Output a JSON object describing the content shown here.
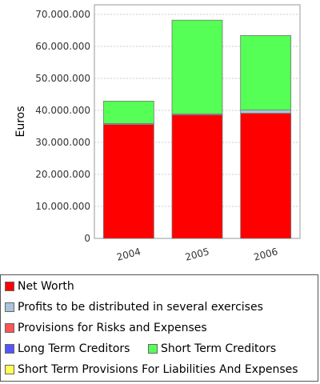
{
  "chart_data": {
    "type": "bar",
    "stacked": true,
    "ylabel": "Euros",
    "xlabel": "",
    "ylim": [
      0,
      73000000
    ],
    "yticks": [
      0,
      10000000,
      20000000,
      30000000,
      40000000,
      50000000,
      60000000,
      70000000
    ],
    "ytick_labels": [
      "0",
      "10.000.000",
      "20.000.000",
      "30.000.000",
      "40.000.000",
      "50.000.000",
      "60.000.000",
      "70.000.000"
    ],
    "categories": [
      "2004",
      "2005",
      "2006"
    ],
    "grid": true,
    "legend_position": "bottom",
    "series": [
      {
        "name": "Net Worth",
        "color": "#ff0000",
        "values": [
          35600000,
          38600000,
          39100000
        ]
      },
      {
        "name": "Profits to be distributed in several exercises",
        "color": "#a9c4dc",
        "values": [
          300000,
          300000,
          1000000
        ]
      },
      {
        "name": "Provisions for Risks and Expenses",
        "color": "#ff5555",
        "values": [
          0,
          0,
          0
        ]
      },
      {
        "name": "Long Term Creditors",
        "color": "#5555ff",
        "values": [
          0,
          0,
          0
        ]
      },
      {
        "name": "Short Term Creditors",
        "color": "#55ff55",
        "values": [
          7000000,
          29300000,
          23300000
        ]
      },
      {
        "name": "Short Term Provisions For Liabilities And Expenses",
        "color": "#ffff55",
        "values": [
          0,
          0,
          0
        ]
      }
    ]
  }
}
